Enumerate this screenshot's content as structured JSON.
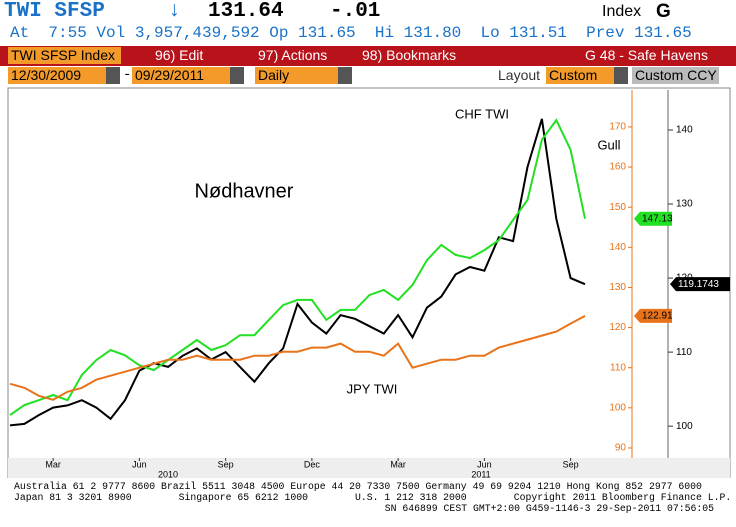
{
  "header": {
    "ticker": "TWI SFSP",
    "arrow": "↓",
    "last": "131.64",
    "change": "-.01",
    "market": "Index",
    "key": "G",
    "quote_line": "At  7:55 Vol 3,957,439,592 Op 131.65  Hi 131.80  Lo 131.51  Prev 131.65"
  },
  "toolbar": {
    "security": "TWI SFSP Index",
    "edit": "96) Edit",
    "actions": "97) Actions",
    "bookmarks": "98) Bookmarks",
    "page": "G 48 - Safe Havens"
  },
  "controls": {
    "start": "12/30/2009",
    "dash": "-",
    "end": "09/29/2011",
    "period": "Daily",
    "layout_label": "Layout",
    "layout": "Custom",
    "ccy": "Custom CCY"
  },
  "chart_data": {
    "type": "line",
    "title": "Nødhavner",
    "categories": [
      null,
      null,
      null,
      "Mar",
      null,
      null,
      null,
      null,
      null,
      "Jun",
      null,
      null,
      null,
      null,
      null,
      "Sep",
      null,
      null,
      null,
      null,
      null,
      "Dec",
      null,
      null,
      null,
      null,
      null,
      "Mar",
      null,
      null,
      null,
      null,
      null,
      "Jun",
      null,
      null,
      null,
      null,
      null,
      "Sep",
      null
    ],
    "x_years": [
      "2010",
      "2011"
    ],
    "series": [
      {
        "name": "CHF TWI",
        "color": "#000000",
        "axis": "y2",
        "values": [
          100.1,
          100.3,
          101.5,
          102.5,
          102.8,
          103.5,
          102.5,
          101.0,
          103.5,
          107.5,
          108.5,
          108.0,
          109.5,
          110.5,
          109.0,
          110.0,
          108.0,
          106.0,
          108.5,
          110.5,
          116.5,
          114.0,
          112.5,
          115.0,
          114.5,
          113.5,
          112.5,
          115.0,
          112.0,
          116.0,
          117.5,
          120.5,
          121.5,
          121.0,
          125.5,
          125.0,
          135.0,
          141.5,
          128.0,
          120.0,
          119.1743
        ]
      },
      {
        "name": "Gull",
        "color": "#22e022",
        "values": [
          98.2,
          100.7,
          101.9,
          103.2,
          101.9,
          108.2,
          111.9,
          114.4,
          113.1,
          110.6,
          109.4,
          111.9,
          114.4,
          116.9,
          114.4,
          115.6,
          118.1,
          118.1,
          121.9,
          125.6,
          126.9,
          126.9,
          121.9,
          124.4,
          124.4,
          128.1,
          129.4,
          126.9,
          130.6,
          136.8,
          140.6,
          138.1,
          137.3,
          139.3,
          141.8,
          146.8,
          151.8,
          166.8,
          171.7,
          164.3,
          147.13
        ]
      },
      {
        "name": "JPY TWI",
        "color": "#e8731a",
        "values": [
          106,
          105,
          103,
          102,
          104,
          105,
          107,
          108,
          109,
          110,
          111,
          112,
          112,
          113,
          112,
          112,
          112,
          113,
          113,
          114,
          114,
          115,
          115,
          116,
          114,
          114,
          113,
          116,
          110,
          111,
          112,
          112,
          113,
          113,
          115,
          116,
          117,
          118,
          119,
          121,
          122.91
        ]
      }
    ],
    "ylim": [
      87.5,
      179.2
    ],
    "yticks": [
      90,
      100,
      110,
      120,
      130,
      140,
      150,
      160,
      170
    ],
    "ytick_color": "#e8731a",
    "y2lim": [
      95.7,
      145.4
    ],
    "y2ticks": [
      100,
      110,
      120,
      130,
      140
    ],
    "grid": false
  },
  "footer": {
    "line1": "Australia 61 2 9777 8600 Brazil 5511 3048 4500 Europe 44 20 7330 7500 Germany 49 69 9204 1210 Hong Kong 852 2977 6000",
    "line2": "Japan 81 3 3201 8900        Singapore 65 6212 1000        U.S. 1 212 318 2000        Copyright 2011 Bloomberg Finance L.P.",
    "line3": "SN 646899 CEST GMT+2:00 G459-1146-3 29-Sep-2011 07:56:05"
  }
}
